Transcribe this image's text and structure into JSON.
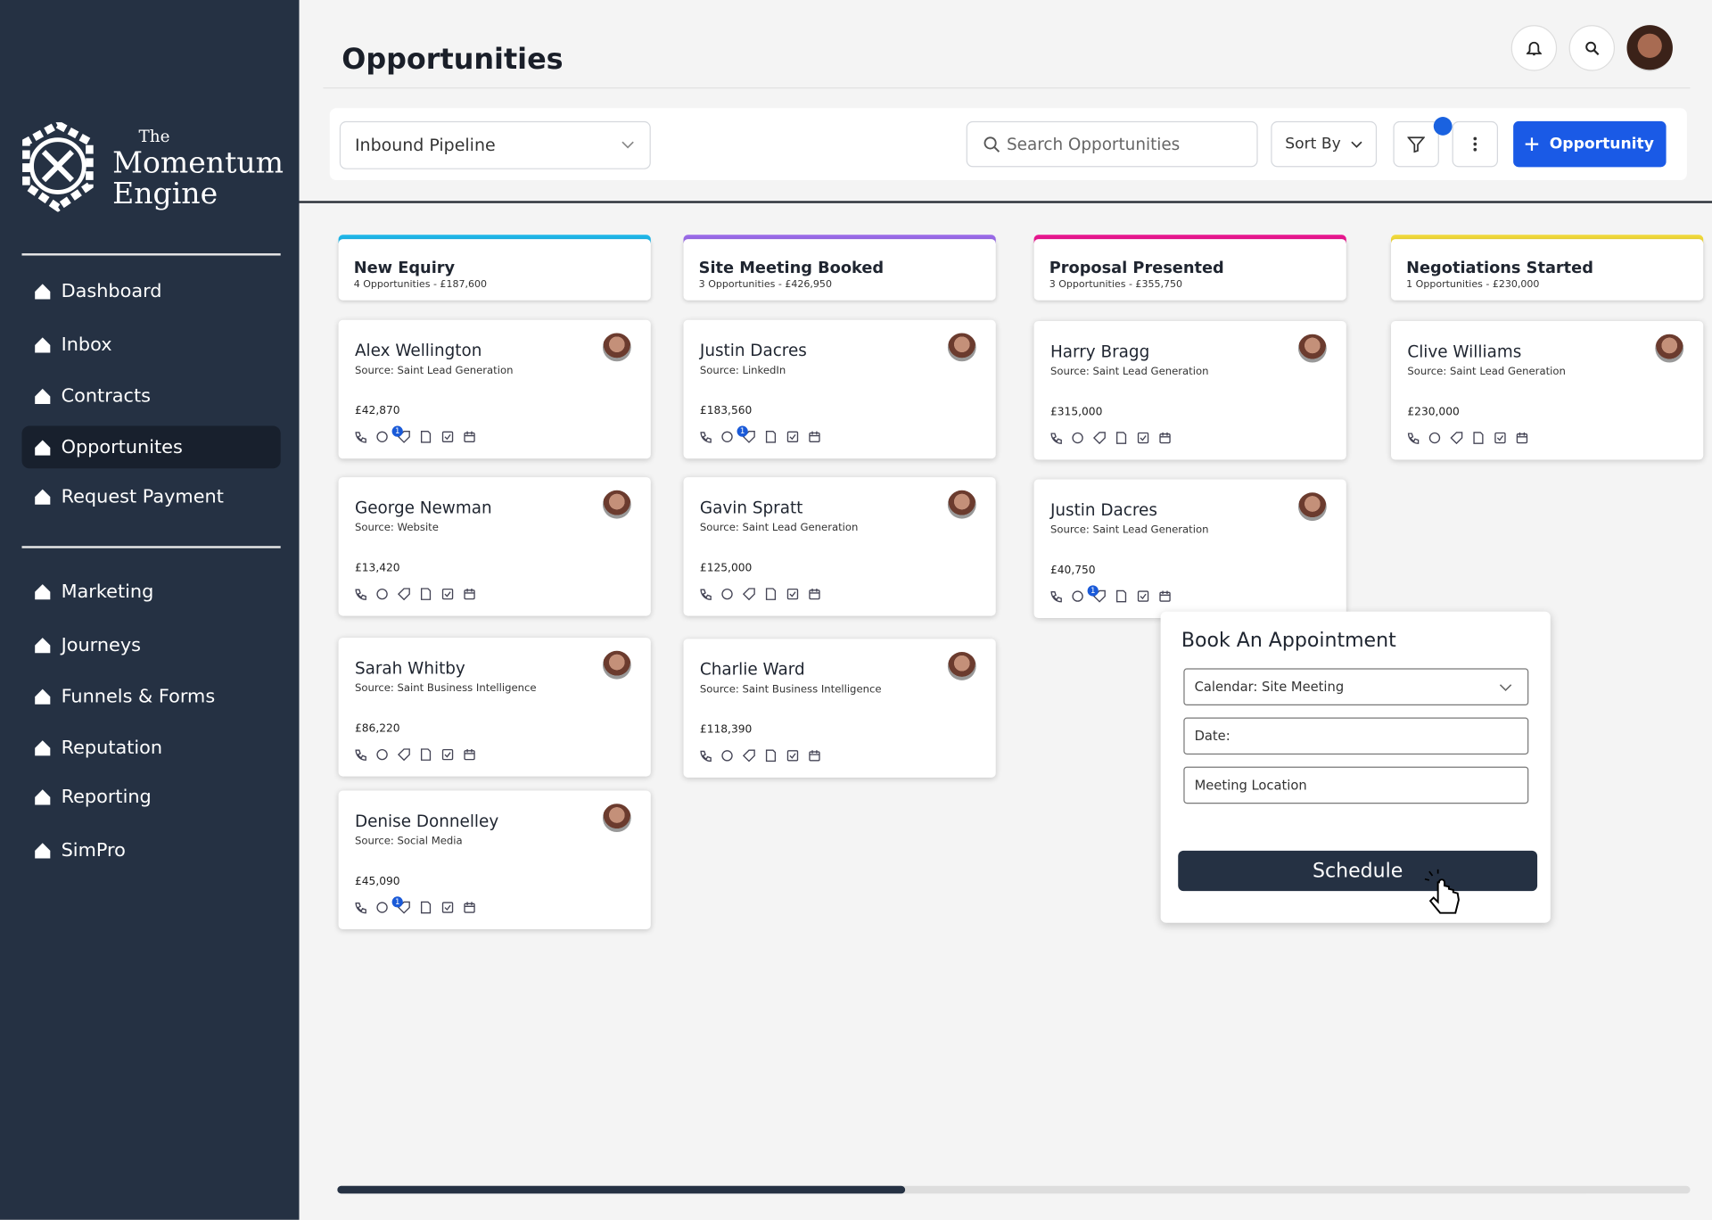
{
  "sidebar": {
    "logo": {
      "line1": "The",
      "line2": "Momentum",
      "line3": "Engine"
    },
    "nav": [
      "Dashboard",
      "Inbox",
      "Contracts",
      "Opportunites",
      "Request Payment"
    ],
    "nav2": [
      "Marketing",
      "Journeys",
      "Funnels & Forms",
      "Reputation",
      "Reporting",
      "SimPro"
    ]
  },
  "header": {
    "title": "Opportunities"
  },
  "toolbar": {
    "pipeline": "Inbound Pipeline",
    "search": "Search Opportunities",
    "sort": "Sort By",
    "button": "Opportunity"
  },
  "columns": [
    {
      "title": "New Equiry",
      "summary": "4 Opportunities - £187,600",
      "color": "#1fb6e8",
      "cards": [
        {
          "name": "Alex Wellington",
          "source": "Source: Saint Lead Generation",
          "amount": "£42,870",
          "badge": "1"
        },
        {
          "name": "George Newman",
          "source": "Source: Website",
          "amount": "£13,420"
        },
        {
          "name": "Sarah Whitby",
          "source": "Source: Saint Business Intelligence",
          "amount": "£86,220"
        },
        {
          "name": "Denise Donnelley",
          "source": "Source: Social Media",
          "amount": "£45,090",
          "badge": "1"
        }
      ]
    },
    {
      "title": "Site Meeting Booked",
      "summary": "3 Opportunities - £426,950",
      "color": "#9a6be8",
      "cards": [
        {
          "name": "Justin Dacres",
          "source": "Source: LinkedIn",
          "amount": "£183,560",
          "badge": "1"
        },
        {
          "name": "Gavin Spratt",
          "source": "Source: Saint Lead Generation",
          "amount": "£125,000"
        },
        {
          "name": "Charlie Ward",
          "source": "Source: Saint Business Intelligence",
          "amount": "£118,390"
        }
      ]
    },
    {
      "title": "Proposal Presented",
      "summary": "3 Opportunities - £355,750",
      "color": "#e8178f",
      "cards": [
        {
          "name": "Harry Bragg",
          "source": "Source: Saint Lead Generation",
          "amount": "£315,000"
        },
        {
          "name": "Justin Dacres",
          "source": "Source: Saint Lead Generation",
          "amount": "£40,750",
          "badge": "1"
        }
      ]
    },
    {
      "title": "Negotiations Started",
      "summary": "1 Opportunities - £230,000",
      "color": "#f0d93a",
      "cards": [
        {
          "name": "Clive Williams",
          "source": "Source: Saint Lead Generation",
          "amount": "£230,000"
        }
      ]
    }
  ],
  "popup": {
    "title": "Book An Appointment",
    "calendar": "Calendar: Site Meeting",
    "date": "Date:",
    "location": "Meeting Location",
    "button": "Schedule"
  }
}
